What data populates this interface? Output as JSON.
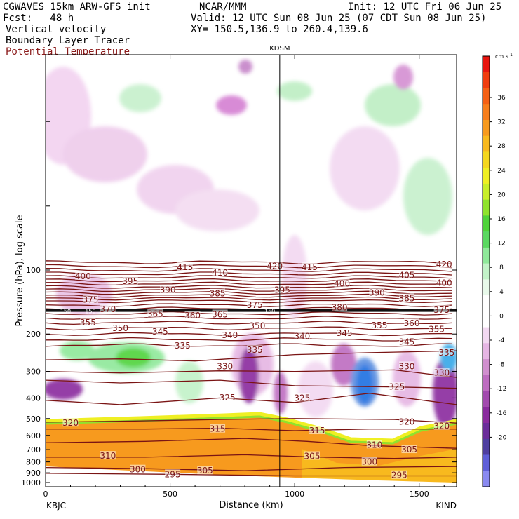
{
  "header": {
    "left1": "CGWAVES 15km ARW-GFS init",
    "left2": "Fcst:   48 h",
    "center1": "NCAR/MMM",
    "right1": "Init: 12 UTC Fri 06 Jun 25",
    "right2": "Valid: 12 UTC Sun 08 Jun 25 (07 CDT Sun 08 Jun 25)",
    "xy": "XY= 150.5,136.9 to 260.4,139.6",
    "field1": "Vertical velocity",
    "field2": "Boundary Layer Tracer",
    "field3": "Potential Temperature"
  },
  "colors": {
    "theta": "#7a1414",
    "bl_fill": "#f79a1e",
    "marker": "#000000"
  },
  "chart_data": {
    "type": "heatmap",
    "title": "",
    "xlabel": "Distance (km)",
    "ylabel": "Pressure (hPa), log scale",
    "xlim": [
      0,
      1650
    ],
    "x_ticks": [
      0,
      500,
      1000,
      1500
    ],
    "x_tick_labels": [
      "0",
      "500",
      "1000",
      "1500"
    ],
    "y_scale": "log",
    "y_ticks": [
      100,
      200,
      300,
      400,
      500,
      600,
      700,
      800,
      900,
      1000
    ],
    "y_tick_labels": [
      "100",
      "200",
      "300",
      "400",
      "500",
      "600",
      "700",
      "800",
      "900",
      "1000"
    ],
    "left_station": "KBJC",
    "right_station": "KIND",
    "marker_station": "KDSM",
    "marker_x": 940,
    "colorbar": {
      "unit_label": "cm s",
      "unit_exp": "-1",
      "tick_labels": [
        "36",
        "32",
        "28",
        "24",
        "20",
        "16",
        "12",
        "8",
        "4",
        "0",
        "-4",
        "-8",
        "-12",
        "-16",
        "-20"
      ],
      "colors": [
        "#e8150f",
        "#f03c0f",
        "#f56015",
        "#f77e1c",
        "#f79a1e",
        "#f8b91e",
        "#f5d71e",
        "#efef23",
        "#c8ee29",
        "#8fe32d",
        "#4fd33a",
        "#5ad861",
        "#8fe89a",
        "#c2f2c8",
        "#e8f9ea",
        "#ffffff",
        "#ffffff",
        "#f2d8f1",
        "#e5b5e3",
        "#d08fce",
        "#bd6cc0",
        "#a24aae",
        "#8a2b9e",
        "#6b2d9a",
        "#4f3fa0",
        "#5f5fd8",
        "#8a8af0"
      ]
    },
    "theta_labels": [
      {
        "text": "420",
        "x": 920,
        "p": 96
      },
      {
        "text": "415",
        "x": 560,
        "p": 97
      },
      {
        "text": "415",
        "x": 1060,
        "p": 97
      },
      {
        "text": "420",
        "x": 1600,
        "p": 94
      },
      {
        "text": "410",
        "x": 700,
        "p": 103
      },
      {
        "text": "400",
        "x": 150,
        "p": 107
      },
      {
        "text": "405",
        "x": 1450,
        "p": 106
      },
      {
        "text": "395",
        "x": 340,
        "p": 113
      },
      {
        "text": "400",
        "x": 1190,
        "p": 116
      },
      {
        "text": "400",
        "x": 1600,
        "p": 115
      },
      {
        "text": "390",
        "x": 490,
        "p": 124
      },
      {
        "text": "385",
        "x": 690,
        "p": 129
      },
      {
        "text": "395",
        "x": 950,
        "p": 124
      },
      {
        "text": "390",
        "x": 1330,
        "p": 128
      },
      {
        "text": "385",
        "x": 1450,
        "p": 136
      },
      {
        "text": "375",
        "x": 180,
        "p": 138
      },
      {
        "text": "375",
        "x": 840,
        "p": 146
      },
      {
        "text": "370",
        "x": 250,
        "p": 153
      },
      {
        "text": "380",
        "x": 1180,
        "p": 150
      },
      {
        "text": "375",
        "x": 1590,
        "p": 154
      },
      {
        "text": "150",
        "x": 80,
        "p": 155
      },
      {
        "text": "150",
        "x": 180,
        "p": 155
      },
      {
        "text": "150",
        "x": 900,
        "p": 155
      },
      {
        "text": "365",
        "x": 440,
        "p": 161
      },
      {
        "text": "360",
        "x": 590,
        "p": 164
      },
      {
        "text": "365",
        "x": 700,
        "p": 162
      },
      {
        "text": "355",
        "x": 170,
        "p": 177
      },
      {
        "text": "350",
        "x": 300,
        "p": 188
      },
      {
        "text": "345",
        "x": 460,
        "p": 195
      },
      {
        "text": "340",
        "x": 740,
        "p": 203
      },
      {
        "text": "350",
        "x": 850,
        "p": 183
      },
      {
        "text": "340",
        "x": 1030,
        "p": 205
      },
      {
        "text": "345",
        "x": 1200,
        "p": 198
      },
      {
        "text": "355",
        "x": 1340,
        "p": 182
      },
      {
        "text": "360",
        "x": 1470,
        "p": 178
      },
      {
        "text": "355",
        "x": 1570,
        "p": 190
      },
      {
        "text": "345",
        "x": 1450,
        "p": 218
      },
      {
        "text": "335",
        "x": 550,
        "p": 227
      },
      {
        "text": "335",
        "x": 840,
        "p": 238
      },
      {
        "text": "335",
        "x": 1610,
        "p": 245
      },
      {
        "text": "330",
        "x": 720,
        "p": 284
      },
      {
        "text": "330",
        "x": 1450,
        "p": 284
      },
      {
        "text": "330",
        "x": 1590,
        "p": 305
      },
      {
        "text": "325",
        "x": 1410,
        "p": 355
      },
      {
        "text": "325",
        "x": 730,
        "p": 398
      },
      {
        "text": "325",
        "x": 1030,
        "p": 400
      },
      {
        "text": "320",
        "x": 100,
        "p": 525
      },
      {
        "text": "320",
        "x": 1450,
        "p": 518
      },
      {
        "text": "320",
        "x": 1590,
        "p": 543
      },
      {
        "text": "315",
        "x": 690,
        "p": 560
      },
      {
        "text": "315",
        "x": 1090,
        "p": 570
      },
      {
        "text": "310",
        "x": 250,
        "p": 750
      },
      {
        "text": "310",
        "x": 1320,
        "p": 665
      },
      {
        "text": "305",
        "x": 1460,
        "p": 700
      },
      {
        "text": "305",
        "x": 1070,
        "p": 752
      },
      {
        "text": "305",
        "x": 640,
        "p": 880
      },
      {
        "text": "300",
        "x": 370,
        "p": 870
      },
      {
        "text": "300",
        "x": 1300,
        "p": 800
      },
      {
        "text": "295",
        "x": 510,
        "p": 915
      },
      {
        "text": "295",
        "x": 1420,
        "p": 925
      }
    ]
  }
}
